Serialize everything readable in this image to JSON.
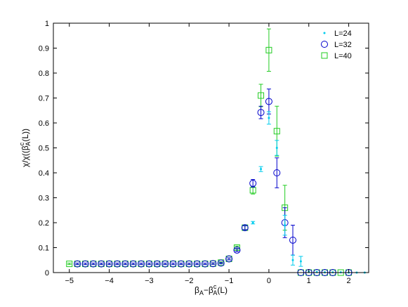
{
  "chart_data": {
    "type": "scatter",
    "title": "",
    "xlabel": "β_A−β_A^c(L)",
    "ylabel": "χ/χ(β_A^c(L))",
    "xlim": [
      -5.4,
      2.5
    ],
    "ylim": [
      0,
      1
    ],
    "xticks": [
      -5,
      -4,
      -3,
      -2,
      -1,
      0,
      1,
      2
    ],
    "yticks": [
      0,
      0.1,
      0.2,
      0.3,
      0.4,
      0.5,
      0.6,
      0.7,
      0.8,
      0.9,
      1
    ],
    "xtick_labels": [
      "−5",
      "−4",
      "−3",
      "−2",
      "−1",
      "0",
      "1",
      "2"
    ],
    "ytick_labels": [
      "0",
      "0.1",
      "0.2",
      "0.3",
      "0.4",
      "0.5",
      "0.6",
      "0.7",
      "0.8",
      "0.9",
      "1"
    ],
    "grid": false,
    "legend_position": "top-right",
    "series": [
      {
        "name": "L=24",
        "marker": "dot",
        "color": "#00ccee",
        "points": [
          {
            "x": -0.4,
            "y": 0.2,
            "err": 0.005
          },
          {
            "x": -0.2,
            "y": 0.415,
            "err": 0.01
          },
          {
            "x": 0.0,
            "y": 0.62,
            "err": 0.025
          },
          {
            "x": 0.2,
            "y": 0.5,
            "err": 0.03
          },
          {
            "x": 0.4,
            "y": 0.19,
            "err": 0.04
          },
          {
            "x": 0.6,
            "y": 0.05,
            "err": 0.02
          },
          {
            "x": 0.8,
            "y": 0.045,
            "err": 0.02
          },
          {
            "x": 1.0,
            "y": 0.003,
            "err": 0.002
          },
          {
            "x": 1.2,
            "y": 0.002,
            "err": 0.001
          },
          {
            "x": 1.4,
            "y": 0.001,
            "err": 0.001
          },
          {
            "x": 1.6,
            "y": 0.001,
            "err": 0.001
          },
          {
            "x": 1.8,
            "y": 0.001,
            "err": 0.001
          },
          {
            "x": 2.0,
            "y": 0.0,
            "err": 0.001
          },
          {
            "x": 2.2,
            "y": 0.0,
            "err": 0.0
          },
          {
            "x": 2.4,
            "y": 0.0,
            "err": 0.0
          }
        ]
      },
      {
        "name": "L=32",
        "marker": "circle",
        "color": "#0000cc",
        "points": [
          {
            "x": -4.8,
            "y": 0.035,
            "err": 0.003
          },
          {
            "x": -4.6,
            "y": 0.035,
            "err": 0.003
          },
          {
            "x": -4.4,
            "y": 0.035,
            "err": 0.003
          },
          {
            "x": -4.2,
            "y": 0.035,
            "err": 0.003
          },
          {
            "x": -4.0,
            "y": 0.035,
            "err": 0.003
          },
          {
            "x": -3.8,
            "y": 0.035,
            "err": 0.003
          },
          {
            "x": -3.6,
            "y": 0.035,
            "err": 0.003
          },
          {
            "x": -3.4,
            "y": 0.035,
            "err": 0.003
          },
          {
            "x": -3.2,
            "y": 0.035,
            "err": 0.003
          },
          {
            "x": -3.0,
            "y": 0.035,
            "err": 0.003
          },
          {
            "x": -2.8,
            "y": 0.035,
            "err": 0.003
          },
          {
            "x": -2.6,
            "y": 0.035,
            "err": 0.003
          },
          {
            "x": -2.4,
            "y": 0.035,
            "err": 0.003
          },
          {
            "x": -2.2,
            "y": 0.035,
            "err": 0.003
          },
          {
            "x": -2.0,
            "y": 0.035,
            "err": 0.003
          },
          {
            "x": -1.8,
            "y": 0.035,
            "err": 0.003
          },
          {
            "x": -1.6,
            "y": 0.035,
            "err": 0.003
          },
          {
            "x": -1.4,
            "y": 0.036,
            "err": 0.003
          },
          {
            "x": -1.2,
            "y": 0.038,
            "err": 0.003
          },
          {
            "x": -1.0,
            "y": 0.055,
            "err": 0.004
          },
          {
            "x": -0.8,
            "y": 0.09,
            "err": 0.006
          },
          {
            "x": -0.6,
            "y": 0.18,
            "err": 0.008
          },
          {
            "x": -0.4,
            "y": 0.358,
            "err": 0.015
          },
          {
            "x": -0.2,
            "y": 0.642,
            "err": 0.025
          },
          {
            "x": 0.0,
            "y": 0.686,
            "err": 0.05
          },
          {
            "x": 0.2,
            "y": 0.4,
            "err": 0.06
          },
          {
            "x": 0.4,
            "y": 0.2,
            "err": 0.06
          },
          {
            "x": 0.6,
            "y": 0.13,
            "err": 0.06
          },
          {
            "x": 0.8,
            "y": 0.0,
            "err": 0.003
          },
          {
            "x": 1.0,
            "y": 0.0,
            "err": 0.002
          },
          {
            "x": 1.2,
            "y": 0.0,
            "err": 0.002
          },
          {
            "x": 1.4,
            "y": 0.0,
            "err": 0.002
          },
          {
            "x": 1.6,
            "y": 0.0,
            "err": 0.002
          },
          {
            "x": 2.0,
            "y": 0.0,
            "err": 0.002
          }
        ]
      },
      {
        "name": "L=40",
        "marker": "square",
        "color": "#22cc22",
        "points": [
          {
            "x": -5.0,
            "y": 0.035,
            "err": 0.003
          },
          {
            "x": -4.8,
            "y": 0.035,
            "err": 0.003
          },
          {
            "x": -4.6,
            "y": 0.035,
            "err": 0.003
          },
          {
            "x": -4.4,
            "y": 0.035,
            "err": 0.003
          },
          {
            "x": -4.2,
            "y": 0.035,
            "err": 0.003
          },
          {
            "x": -4.0,
            "y": 0.035,
            "err": 0.003
          },
          {
            "x": -3.8,
            "y": 0.035,
            "err": 0.003
          },
          {
            "x": -3.6,
            "y": 0.035,
            "err": 0.003
          },
          {
            "x": -3.4,
            "y": 0.035,
            "err": 0.003
          },
          {
            "x": -3.2,
            "y": 0.035,
            "err": 0.003
          },
          {
            "x": -3.0,
            "y": 0.035,
            "err": 0.003
          },
          {
            "x": -2.8,
            "y": 0.035,
            "err": 0.003
          },
          {
            "x": -2.6,
            "y": 0.035,
            "err": 0.003
          },
          {
            "x": -2.4,
            "y": 0.035,
            "err": 0.003
          },
          {
            "x": -2.2,
            "y": 0.035,
            "err": 0.003
          },
          {
            "x": -2.0,
            "y": 0.035,
            "err": 0.003
          },
          {
            "x": -1.8,
            "y": 0.035,
            "err": 0.003
          },
          {
            "x": -1.6,
            "y": 0.035,
            "err": 0.003
          },
          {
            "x": -1.4,
            "y": 0.036,
            "err": 0.003
          },
          {
            "x": -1.2,
            "y": 0.04,
            "err": 0.003
          },
          {
            "x": -1.0,
            "y": 0.055,
            "err": 0.004
          },
          {
            "x": -0.8,
            "y": 0.1,
            "err": 0.006
          },
          {
            "x": -0.6,
            "y": 0.18,
            "err": 0.008
          },
          {
            "x": -0.4,
            "y": 0.33,
            "err": 0.015
          },
          {
            "x": -0.2,
            "y": 0.71,
            "err": 0.045
          },
          {
            "x": 0.0,
            "y": 0.892,
            "err": 0.085
          },
          {
            "x": 0.2,
            "y": 0.567,
            "err": 0.1
          },
          {
            "x": 0.4,
            "y": 0.26,
            "err": 0.09
          },
          {
            "x": 0.8,
            "y": 0.0,
            "err": 0.003
          },
          {
            "x": 1.0,
            "y": 0.0,
            "err": 0.002
          },
          {
            "x": 1.2,
            "y": 0.0,
            "err": 0.002
          },
          {
            "x": 1.4,
            "y": 0.0,
            "err": 0.002
          },
          {
            "x": 1.6,
            "y": 0.0,
            "err": 0.002
          },
          {
            "x": 1.8,
            "y": 0.0,
            "err": 0.002
          },
          {
            "x": 2.0,
            "y": 0.0,
            "err": 0.002
          }
        ]
      }
    ]
  }
}
